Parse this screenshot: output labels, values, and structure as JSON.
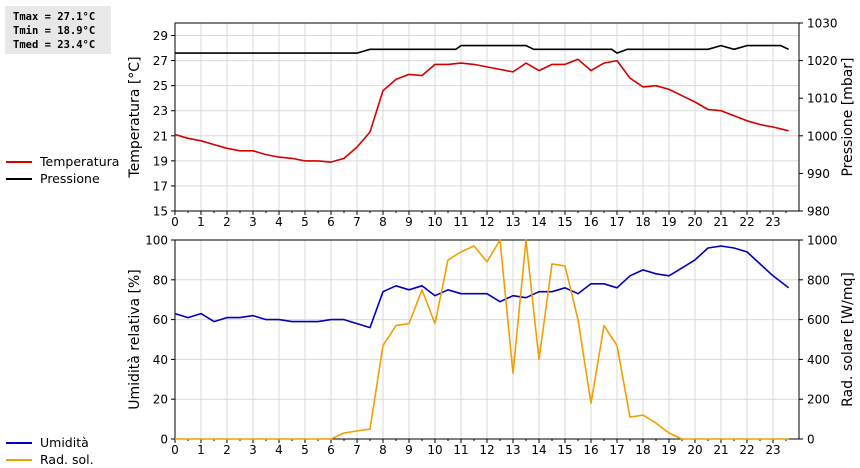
{
  "stats": {
    "tmax": "Tmax = 27.1°C",
    "tmin": "Tmin = 18.9°C",
    "tmed": "Tmed = 23.4°C"
  },
  "legend_top": [
    {
      "label": "Temperatura",
      "color": "#d40000"
    },
    {
      "label": "Pressione",
      "color": "#000000"
    }
  ],
  "legend_bottom": [
    {
      "label": "Umidità",
      "color": "#0000c0"
    },
    {
      "label": "Rad. sol.",
      "color": "#f0a000"
    }
  ],
  "chart_data": [
    {
      "type": "line",
      "ylabel": "Temperatura [°C]",
      "y2label": "Pressione [mbar]",
      "xlim": [
        0,
        24
      ],
      "ylim": [
        15,
        30
      ],
      "y2lim": [
        980,
        1030
      ],
      "xticks": [
        0,
        1,
        2,
        3,
        4,
        5,
        6,
        7,
        8,
        9,
        10,
        11,
        12,
        13,
        14,
        15,
        16,
        17,
        18,
        19,
        20,
        21,
        22,
        23
      ],
      "yticks": [
        15,
        17,
        19,
        21,
        23,
        25,
        27,
        29
      ],
      "y2ticks": [
        980,
        990,
        1000,
        1010,
        1020,
        1030
      ],
      "grid": true,
      "series": [
        {
          "name": "Temperatura",
          "axis": "left",
          "color": "#d40000",
          "x": [
            0,
            0.5,
            1,
            1.5,
            2,
            2.5,
            3,
            3.5,
            4,
            4.5,
            5,
            5.5,
            6,
            6.5,
            7,
            7.5,
            8,
            8.5,
            9,
            9.5,
            10,
            10.5,
            11,
            11.5,
            12,
            12.5,
            13,
            13.5,
            14,
            14.5,
            15,
            15.5,
            16,
            16.5,
            17,
            17.5,
            18,
            18.5,
            19,
            19.5,
            20,
            20.5,
            21,
            21.5,
            22,
            22.5,
            23,
            23.6
          ],
          "values": [
            21.1,
            20.8,
            20.6,
            20.3,
            20.0,
            19.8,
            19.8,
            19.5,
            19.3,
            19.2,
            19.0,
            19.0,
            18.9,
            19.2,
            20.1,
            21.3,
            24.6,
            25.5,
            25.9,
            25.8,
            26.7,
            26.7,
            26.8,
            26.7,
            26.5,
            26.3,
            26.1,
            26.8,
            26.2,
            26.7,
            26.7,
            27.1,
            26.2,
            26.8,
            27.0,
            25.6,
            24.9,
            25.0,
            24.7,
            24.2,
            23.7,
            23.1,
            23.0,
            22.6,
            22.2,
            21.9,
            21.7,
            21.4
          ]
        },
        {
          "name": "Pressione",
          "axis": "right",
          "color": "#000000",
          "x": [
            0,
            7,
            7.5,
            10.8,
            11,
            13.5,
            13.8,
            16.8,
            17,
            17.4,
            20.5,
            21,
            21.5,
            22,
            23.3,
            23.6
          ],
          "values": [
            1022,
            1022,
            1023,
            1023,
            1024,
            1024,
            1023,
            1023,
            1022,
            1023,
            1023,
            1024,
            1023,
            1024,
            1024,
            1023
          ]
        }
      ]
    },
    {
      "type": "line",
      "ylabel": "Umidità relativa [%]",
      "y2label": "Rad. solare [W/mq]",
      "xlim": [
        0,
        24
      ],
      "ylim": [
        0,
        100
      ],
      "y2lim": [
        0,
        1000
      ],
      "xticks": [
        0,
        1,
        2,
        3,
        4,
        5,
        6,
        7,
        8,
        9,
        10,
        11,
        12,
        13,
        14,
        15,
        16,
        17,
        18,
        19,
        20,
        21,
        22,
        23
      ],
      "yticks": [
        0,
        20,
        40,
        60,
        80,
        100
      ],
      "y2ticks": [
        0,
        200,
        400,
        600,
        800,
        1000
      ],
      "grid": true,
      "series": [
        {
          "name": "Umidità",
          "axis": "left",
          "color": "#0000c0",
          "x": [
            0,
            0.5,
            1,
            1.5,
            2,
            2.5,
            3,
            3.5,
            4,
            4.5,
            5,
            5.5,
            6,
            6.5,
            7,
            7.5,
            8,
            8.5,
            9,
            9.5,
            10,
            10.5,
            11,
            11.5,
            12,
            12.5,
            13,
            13.5,
            14,
            14.5,
            15,
            15.5,
            16,
            16.5,
            17,
            17.5,
            18,
            18.5,
            19,
            19.5,
            20,
            20.5,
            21,
            21.5,
            22,
            22.5,
            23,
            23.6
          ],
          "values": [
            63,
            61,
            63,
            59,
            61,
            61,
            62,
            60,
            60,
            59,
            59,
            59,
            60,
            60,
            58,
            56,
            74,
            77,
            75,
            77,
            72,
            75,
            73,
            73,
            73,
            69,
            72,
            71,
            74,
            74,
            76,
            73,
            78,
            78,
            76,
            82,
            85,
            83,
            82,
            86,
            90,
            96,
            97,
            96,
            94,
            88,
            82,
            76
          ]
        },
        {
          "name": "Rad. sol.",
          "axis": "right",
          "color": "#f0a000",
          "x": [
            0,
            6,
            6.5,
            7,
            7.5,
            8,
            8.5,
            9,
            9.5,
            10,
            10.5,
            11,
            11.5,
            12,
            12.5,
            13,
            13.5,
            14,
            14.5,
            15,
            15.5,
            16,
            16.5,
            17,
            17.5,
            18,
            18.5,
            19,
            19.5,
            23.6
          ],
          "values": [
            0,
            0,
            30,
            40,
            50,
            470,
            570,
            580,
            750,
            580,
            900,
            940,
            970,
            890,
            1020,
            330,
            1000,
            400,
            880,
            870,
            600,
            180,
            570,
            470,
            110,
            120,
            80,
            30,
            0,
            0
          ]
        }
      ]
    }
  ]
}
